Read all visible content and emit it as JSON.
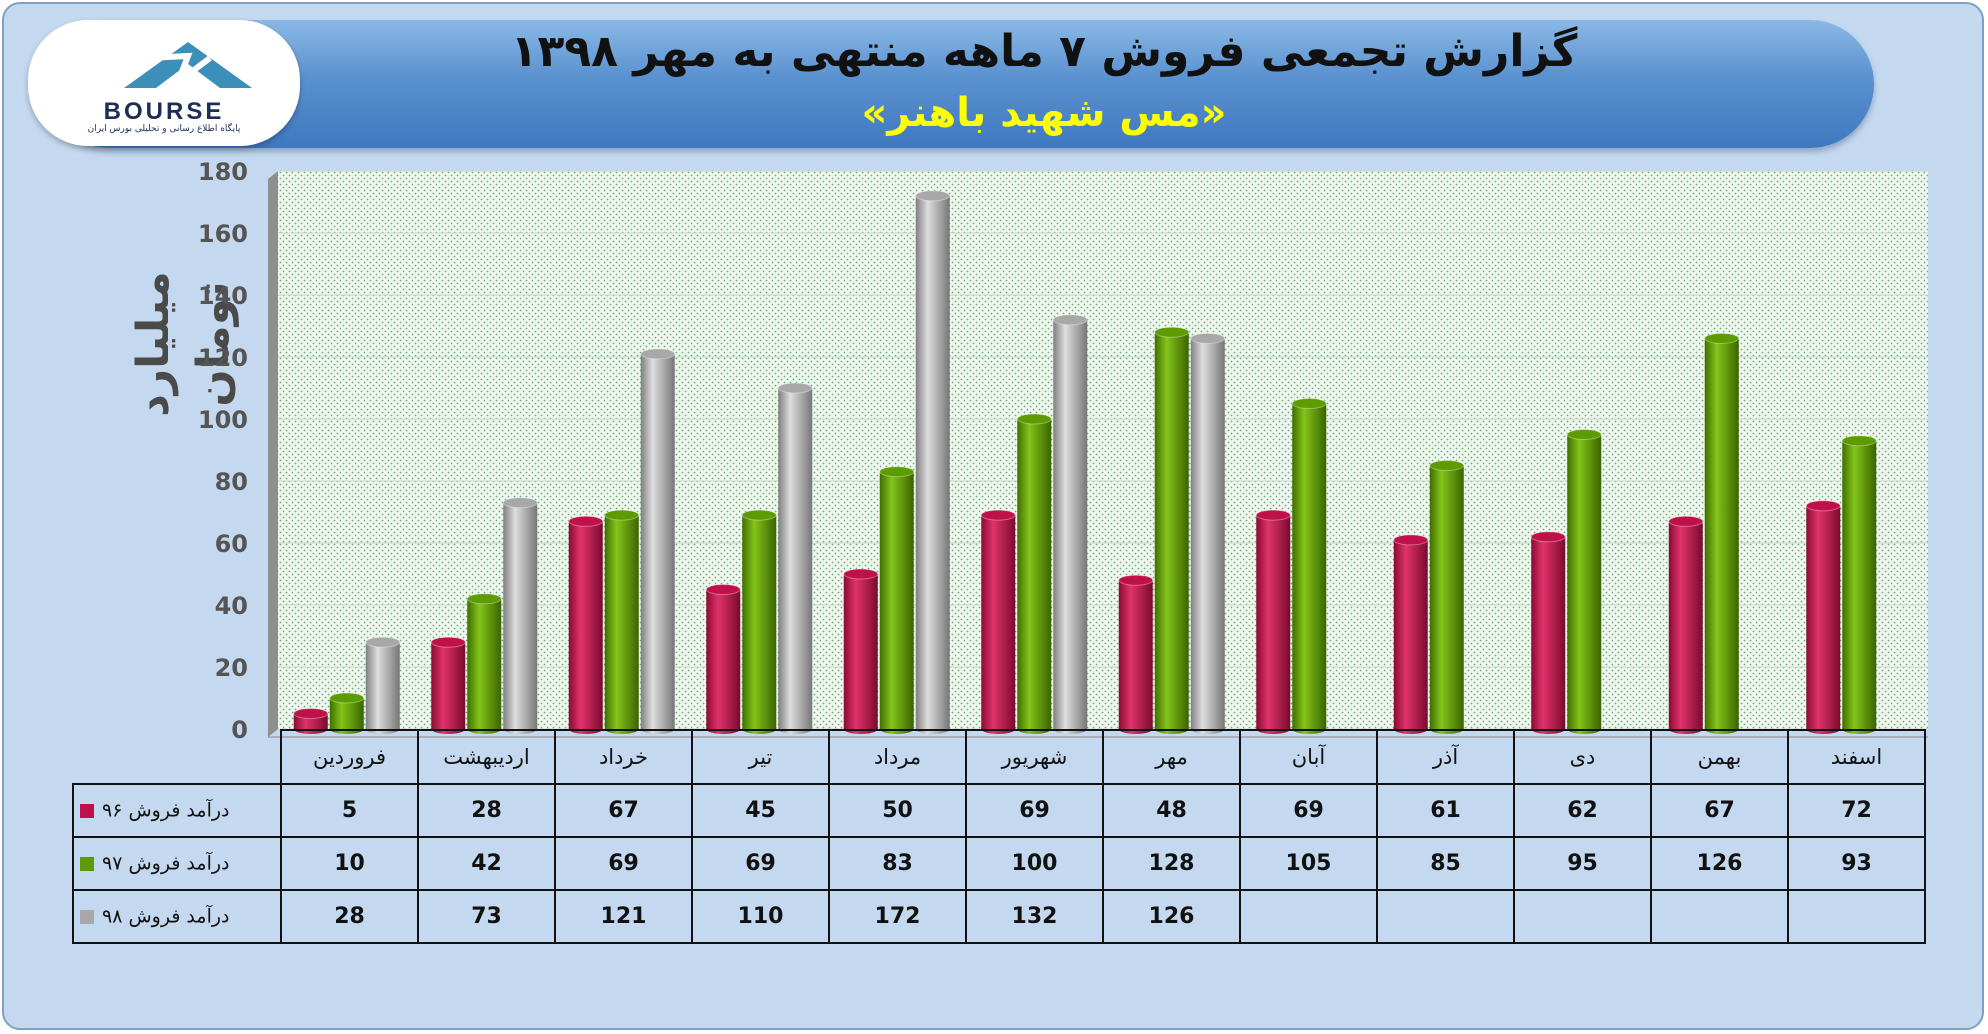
{
  "header": {
    "title": "گزارش تجمعی فروش ۷ ماهه منتهی به مهر ۱۳۹۸",
    "subtitle": "«مس شهید باهنر»"
  },
  "logo": {
    "text": "BOURSE",
    "subtext": "پایگاه اطلاع رسانی و تحلیلی بورس ایران"
  },
  "chart_data": {
    "type": "bar",
    "ylabel": "میلیارد تومان",
    "ylim": [
      0,
      180
    ],
    "yticks": [
      "0",
      "20",
      "40",
      "60",
      "80",
      "100",
      "120",
      "140",
      "160",
      "180"
    ],
    "grid": true,
    "categories": [
      "فروردین",
      "اردیبهشت",
      "خرداد",
      "تیر",
      "مرداد",
      "شهریور",
      "مهر",
      "آبان",
      "آذر",
      "دی",
      "بهمن",
      "اسفند"
    ],
    "series": [
      {
        "name": "درآمد فروش ۹۶",
        "color": "#c0104a",
        "values": [
          5,
          28,
          67,
          45,
          50,
          69,
          48,
          69,
          61,
          62,
          67,
          72
        ]
      },
      {
        "name": "درآمد فروش ۹۷",
        "color": "#5c9c00",
        "values": [
          10,
          42,
          69,
          69,
          83,
          100,
          128,
          105,
          85,
          95,
          126,
          93
        ]
      },
      {
        "name": "درآمد فروش ۹۸",
        "color": "#a8a8a8",
        "values": [
          28,
          73,
          121,
          110,
          172,
          132,
          126,
          null,
          null,
          null,
          null,
          null
        ]
      }
    ]
  }
}
